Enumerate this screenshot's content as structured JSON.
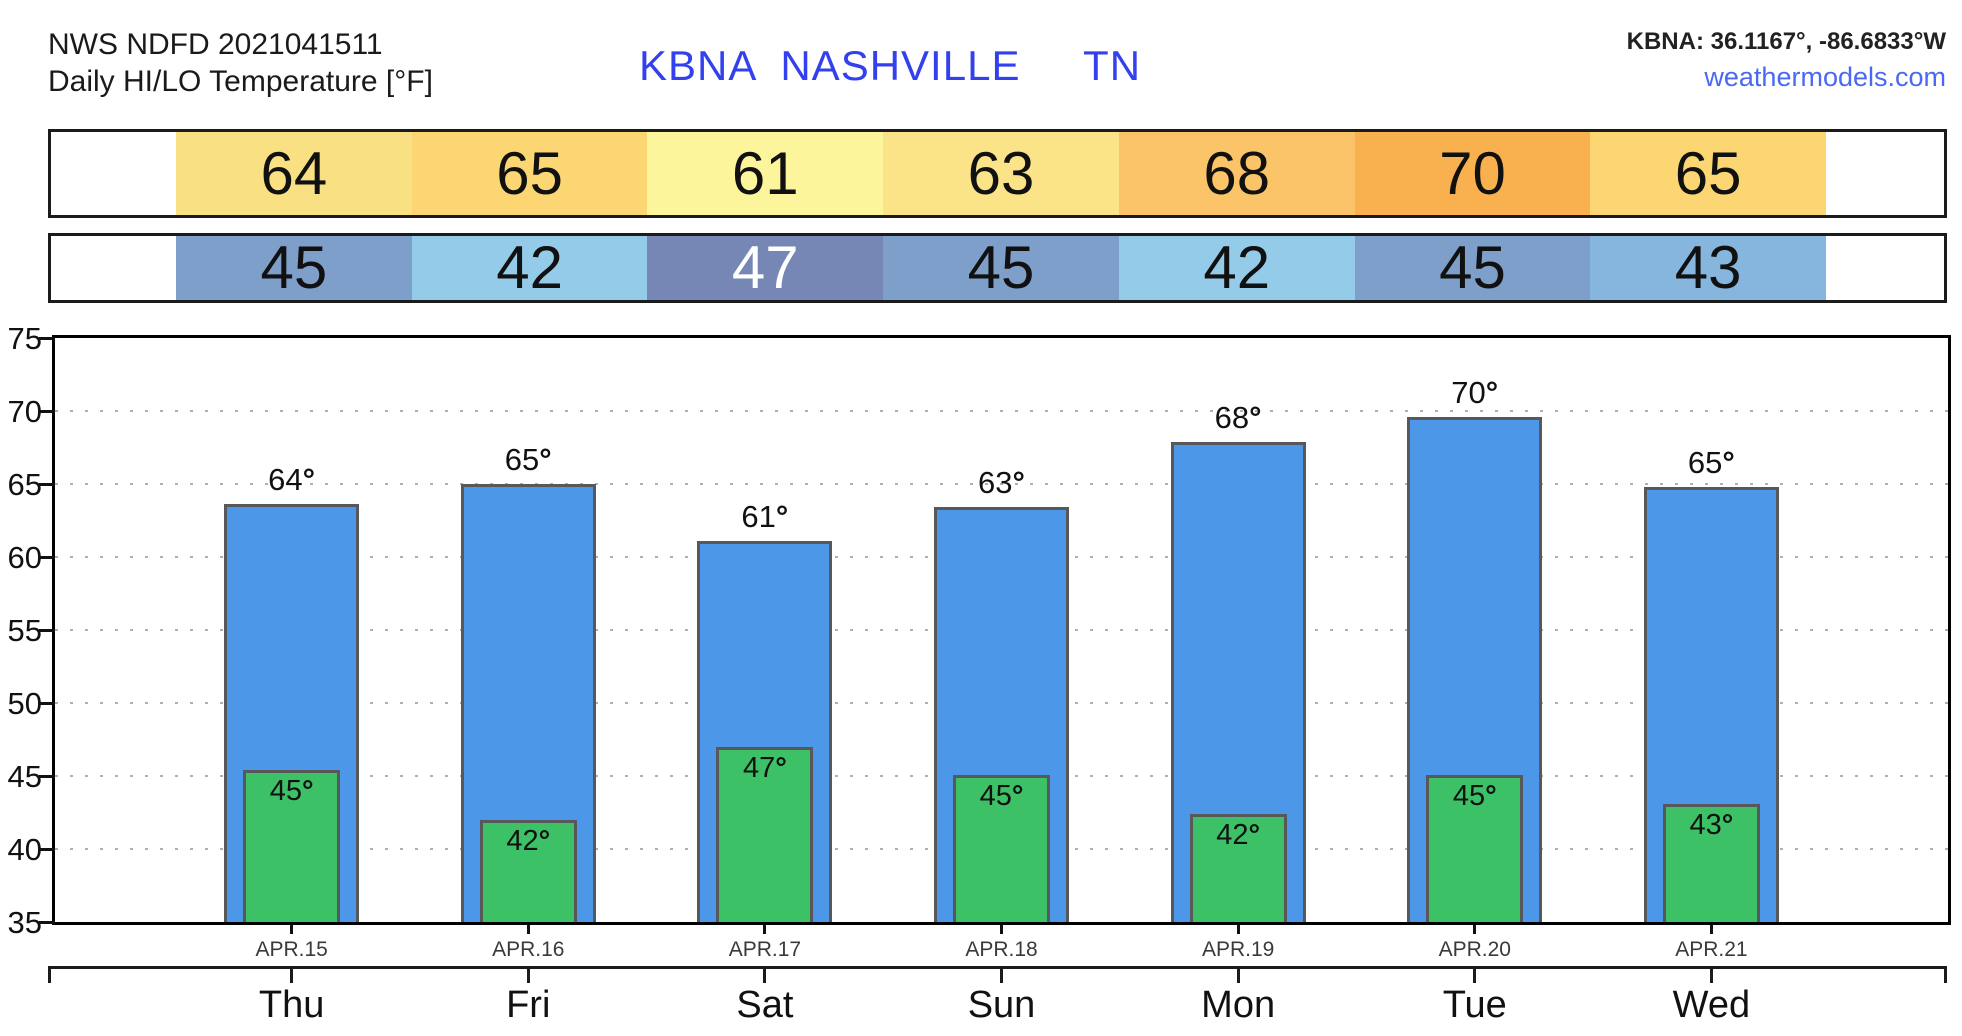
{
  "header": {
    "model_line": "NWS NDFD 2021041511",
    "product_line": "Daily HI/LO Temperature [°F]",
    "station_title": "KBNA  NASHVILLE     TN",
    "coords": "KBNA: 36.1167°, -86.6833°W",
    "site": "weathermodels.com",
    "title_color": "#3340ee",
    "site_color": "#4a68f2"
  },
  "hi_strip": {
    "values": [
      "64",
      "65",
      "61",
      "63",
      "68",
      "70",
      "65"
    ],
    "colors": [
      "#f9e183",
      "#fbd672",
      "#fdf59b",
      "#fbe388",
      "#fbc468",
      "#f9b04f",
      "#fbd672"
    ],
    "text_colors": [
      "#111111",
      "#111111",
      "#111111",
      "#111111",
      "#111111",
      "#111111",
      "#111111"
    ]
  },
  "lo_strip": {
    "values": [
      "45",
      "42",
      "47",
      "45",
      "42",
      "45",
      "43"
    ],
    "colors": [
      "#7d9fca",
      "#93cbe9",
      "#7687b5",
      "#7d9fca",
      "#93cbe9",
      "#7d9fca",
      "#86b5dd"
    ],
    "text_colors": [
      "#111111",
      "#111111",
      "#ffffff",
      "#111111",
      "#111111",
      "#111111",
      "#111111"
    ]
  },
  "chart_data": {
    "type": "bar",
    "title": "Daily HI/LO Temperature [°F]",
    "station": "KBNA NASHVILLE TN",
    "categories": [
      "Thu",
      "Fri",
      "Sat",
      "Sun",
      "Mon",
      "Tue",
      "Wed"
    ],
    "date_labels": [
      "APR.15",
      "APR.16",
      "APR.17",
      "APR.18",
      "APR.19",
      "APR.20",
      "APR.21"
    ],
    "series": [
      {
        "name": "HI",
        "values": [
          64,
          65,
          61,
          63,
          68,
          70,
          65
        ],
        "color": "#4d97e8",
        "bar_tops": [
          63.6,
          65.0,
          61.1,
          63.4,
          67.9,
          69.6,
          64.8
        ]
      },
      {
        "name": "LO",
        "values": [
          45,
          42,
          47,
          45,
          42,
          45,
          43
        ],
        "color": "#3cc167",
        "bar_tops": [
          45.4,
          42.0,
          47.0,
          45.1,
          42.4,
          45.1,
          43.1
        ]
      }
    ],
    "ylim": [
      35,
      75
    ],
    "yticks": [
      35,
      40,
      45,
      50,
      55,
      60,
      65,
      70,
      75
    ],
    "gridlines": [
      40,
      45,
      50,
      55,
      60,
      65,
      70
    ],
    "grid": "dotted horizontal lines every 5°F",
    "degree_symbol": "°",
    "bar_border_color": "#58585a",
    "legend": "none"
  }
}
